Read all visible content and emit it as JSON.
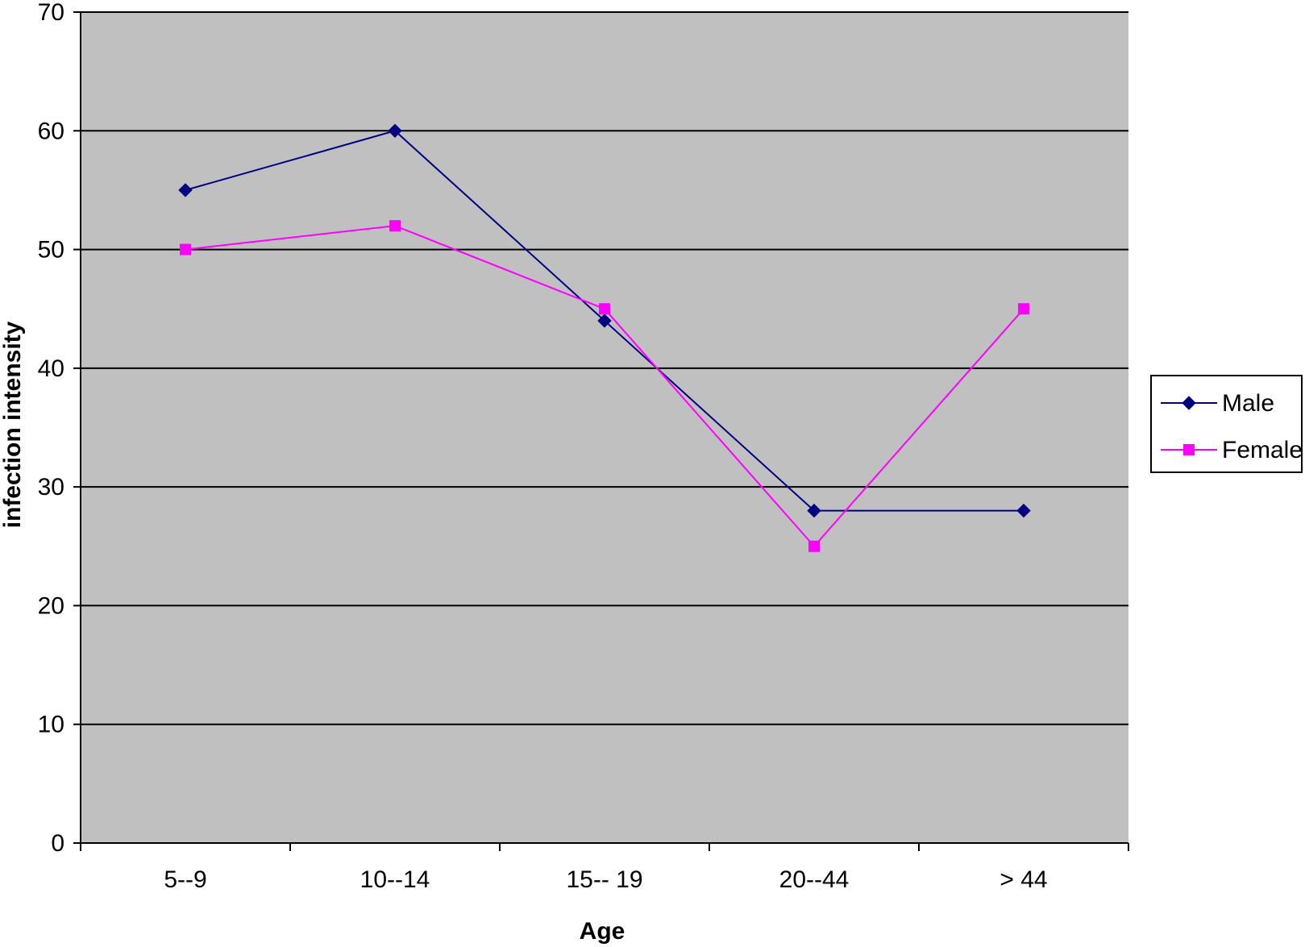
{
  "chart_data": {
    "type": "line",
    "categories": [
      "5--9",
      "10--14",
      "15-- 19",
      "20--44",
      "> 44"
    ],
    "series": [
      {
        "name": "Male",
        "values": [
          55,
          60,
          44,
          28,
          28
        ],
        "color": "#000080",
        "marker": "diamond"
      },
      {
        "name": "Female",
        "values": [
          50,
          52,
          45,
          25,
          45
        ],
        "color": "#ff00ff",
        "marker": "square"
      }
    ],
    "xlabel": "Age",
    "ylabel": "infection intensity",
    "ylim": [
      0,
      70
    ],
    "yticks": [
      0,
      10,
      20,
      30,
      40,
      50,
      60,
      70
    ],
    "grid": true,
    "legend_position": "right",
    "plot_background": "#c0c0c0",
    "gridline_color": "#000000"
  }
}
